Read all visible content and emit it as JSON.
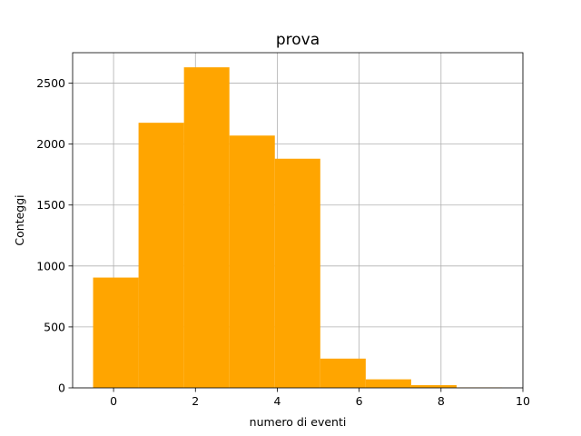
{
  "chart_data": {
    "type": "bar",
    "title": "prova",
    "xlabel": "numero di eventi",
    "ylabel": "Conteggi",
    "xlim": [
      -1,
      10
    ],
    "ylim": [
      0,
      2750
    ],
    "grid": true,
    "bar_color": "#ffa500",
    "bins": [
      {
        "left": -0.5,
        "right": 0.61,
        "value": 905
      },
      {
        "left": 0.61,
        "right": 1.72,
        "value": 2175
      },
      {
        "left": 1.72,
        "right": 2.83,
        "value": 2630
      },
      {
        "left": 2.83,
        "right": 3.94,
        "value": 2070
      },
      {
        "left": 3.94,
        "right": 5.05,
        "value": 1880
      },
      {
        "left": 5.05,
        "right": 6.16,
        "value": 240
      },
      {
        "left": 6.16,
        "right": 7.27,
        "value": 70
      },
      {
        "left": 7.27,
        "right": 8.38,
        "value": 22
      },
      {
        "left": 8.38,
        "right": 9.49,
        "value": 3
      }
    ],
    "x_ticks": [
      0,
      2,
      4,
      6,
      8,
      10
    ],
    "y_ticks": [
      0,
      500,
      1000,
      1500,
      2000,
      2500
    ]
  }
}
